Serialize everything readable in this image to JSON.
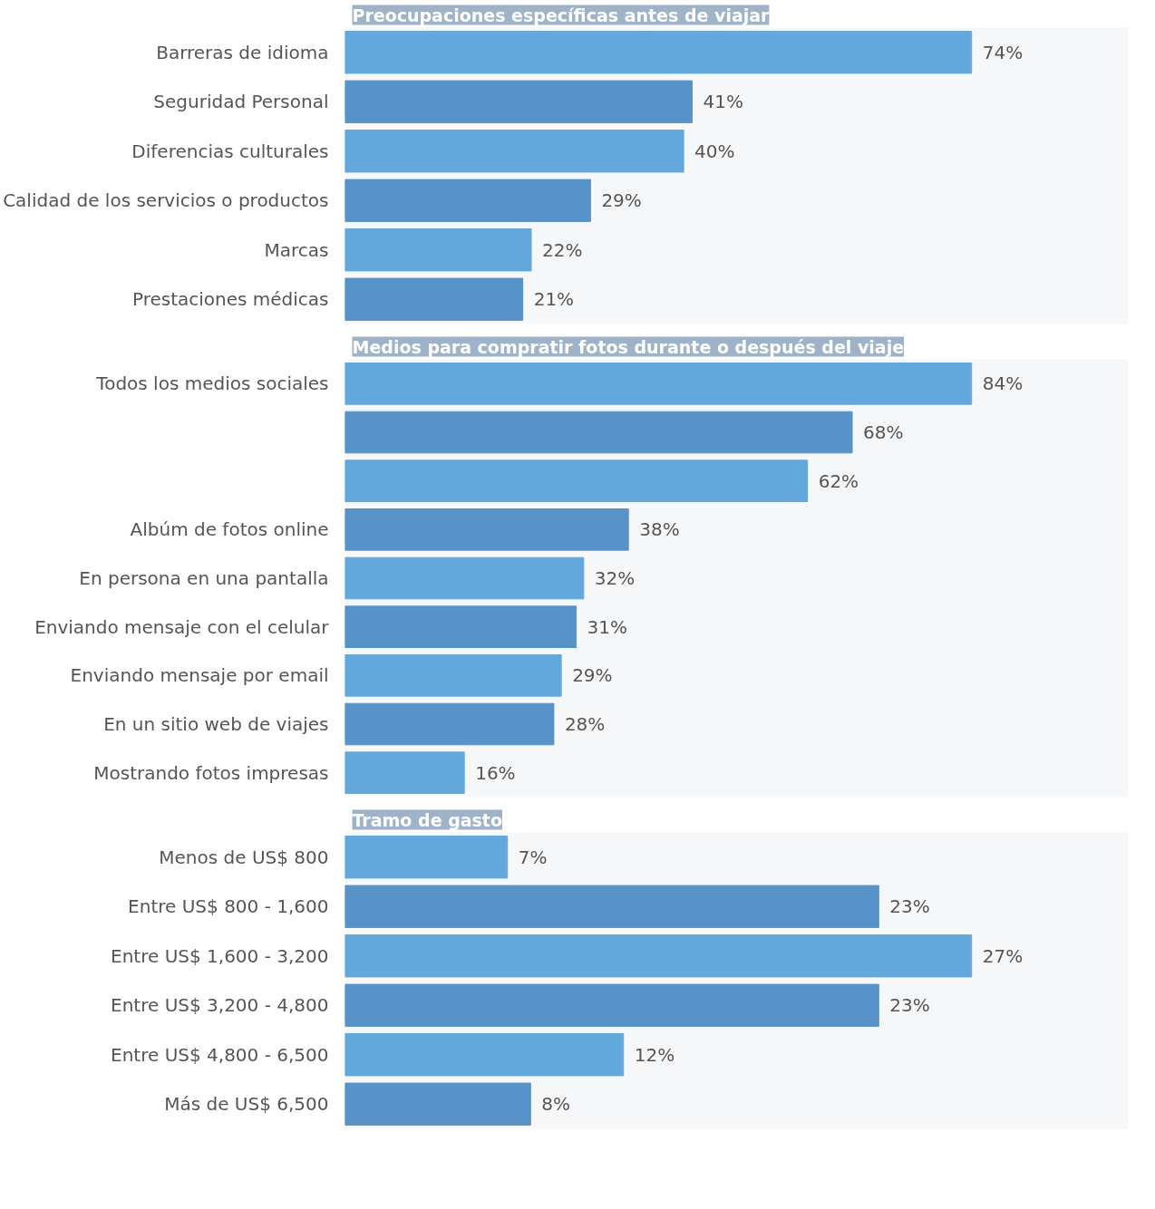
{
  "chart_data": [
    {
      "type": "bar",
      "orientation": "horizontal",
      "title": "Preocupaciones específicas antes de viajar",
      "tick_labels": "y",
      "grid": false,
      "categories": [
        "Barreras de idioma",
        "Seguridad Personal",
        "Diferencias culturales",
        "Calidad de los servicios o productos",
        "Marcas",
        "Prestaciones médicas"
      ],
      "values": [
        74,
        41,
        40,
        29,
        22,
        21
      ],
      "value_labels": [
        "74%",
        "41%",
        "40%",
        "29%",
        "22%",
        "21%"
      ],
      "colors": [
        "#62a8dc",
        "#5793c8",
        "#62a8dc",
        "#5793c8",
        "#62a8dc",
        "#5793c8"
      ]
    },
    {
      "type": "bar",
      "orientation": "horizontal",
      "title": "Medios para compratir fotos durante o después del viaje",
      "tick_labels": "y",
      "grid": false,
      "categories": [
        "Todos los medios sociales",
        null,
        null,
        "Albúm de fotos online",
        "En persona en una pantalla",
        "Enviando mensaje con el celular",
        "Enviando mensaje por email",
        "En un sitio web de viajes",
        "Mostrando fotos impresas"
      ],
      "values": [
        84,
        68,
        62,
        38,
        32,
        31,
        29,
        28,
        16
      ],
      "value_labels": [
        "84%",
        "68%",
        "62%",
        "38%",
        "32%",
        "31%",
        "29%",
        "28%",
        "16%"
      ],
      "colors": [
        "#62a8dc",
        "#5793c8",
        "#62a8dc",
        "#5793c8",
        "#62a8dc",
        "#5793c8",
        "#62a8dc",
        "#5793c8",
        "#62a8dc"
      ]
    },
    {
      "type": "bar",
      "orientation": "horizontal",
      "title": "Tramo de gasto",
      "tick_labels": "y",
      "grid": false,
      "categories": [
        "Menos de US$ 800",
        "Entre US$ 800 - 1,600",
        "Entre US$ 1,600 - 3,200",
        "Entre US$ 3,200 - 4,800",
        "Entre US$ 4,800 - 6,500",
        "Más de US$ 6,500"
      ],
      "values": [
        7,
        23,
        27,
        23,
        12,
        8
      ],
      "value_labels": [
        "7%",
        "23%",
        "27%",
        "23%",
        "12%",
        "8%"
      ],
      "colors": [
        "#62a8dc",
        "#5793c8",
        "#62a8dc",
        "#5793c8",
        "#62a8dc",
        "#5793c8"
      ]
    }
  ]
}
